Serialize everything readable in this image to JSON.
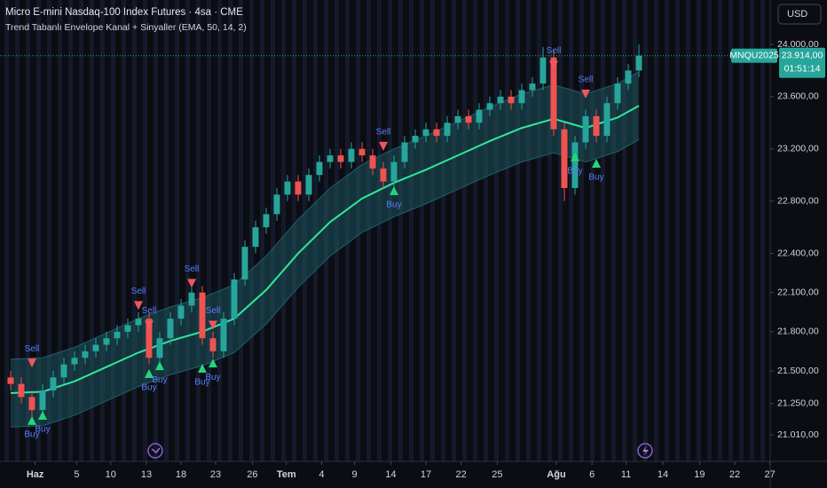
{
  "chart_data": {
    "type": "candlestick",
    "title": "Micro E-mini Nasdaq-100 Index Futures · 4sa · CME",
    "subtitle": "Trend Tabanlı Envelope Kanal + Sinyaller (EMA, 50, 14, 2)",
    "currency": "USD",
    "symbol": "MNQU2025",
    "last_price": {
      "value": 23914,
      "label": "23.914,00"
    },
    "countdown": "01:51:14",
    "grid": false,
    "xlim": [
      0,
      72.5
    ],
    "ylim": [
      20807,
      24340
    ],
    "xticks": [
      {
        "value": 3.3,
        "label": "Haz"
      },
      {
        "value": 7.2,
        "label": "5"
      },
      {
        "value": 10.4,
        "label": "10"
      },
      {
        "value": 13.75,
        "label": "13"
      },
      {
        "value": 17,
        "label": "18"
      },
      {
        "value": 20.25,
        "label": "23"
      },
      {
        "value": 23.7,
        "label": "26"
      },
      {
        "value": 26.9,
        "label": "Tem"
      },
      {
        "value": 30.2,
        "label": "4"
      },
      {
        "value": 33.3,
        "label": "9"
      },
      {
        "value": 36.7,
        "label": "14"
      },
      {
        "value": 40,
        "label": "17"
      },
      {
        "value": 43.3,
        "label": "22"
      },
      {
        "value": 46.7,
        "label": "25"
      },
      {
        "value": 52.25,
        "label": "Ağu"
      },
      {
        "value": 55.6,
        "label": "6"
      },
      {
        "value": 58.8,
        "label": "11"
      },
      {
        "value": 62.25,
        "label": "14"
      },
      {
        "value": 65.7,
        "label": "19"
      },
      {
        "value": 69,
        "label": "22"
      },
      {
        "value": 72.3,
        "label": "27"
      }
    ],
    "yticks": [
      {
        "value": 24000,
        "label": "24.000,00"
      },
      {
        "value": 23600,
        "label": "23.600,00"
      },
      {
        "value": 23200,
        "label": "23.200,00"
      },
      {
        "value": 22800,
        "label": "22.800,00"
      },
      {
        "value": 22400,
        "label": "22.400,00"
      },
      {
        "value": 22100,
        "label": "22.100,00"
      },
      {
        "value": 21800,
        "label": "21.800,00"
      },
      {
        "value": 21500,
        "label": "21.500,00"
      },
      {
        "value": 21250,
        "label": "21.250,00"
      },
      {
        "value": 21010,
        "label": "21.010,00"
      }
    ],
    "up_color": "#26a69a",
    "down_color": "#ef5350",
    "x": [
      1,
      2,
      3,
      4,
      5,
      6,
      7,
      8,
      9,
      10,
      11,
      12,
      13,
      14,
      15,
      16,
      17,
      18,
      19,
      20,
      21,
      22,
      23,
      24,
      25,
      26,
      27,
      28,
      29,
      30,
      31,
      32,
      33,
      34,
      35,
      36,
      37,
      38,
      39,
      40,
      41,
      42,
      43,
      44,
      45,
      46,
      47,
      48,
      49,
      50,
      51,
      52,
      53,
      54,
      55,
      56,
      57,
      58,
      59,
      60
    ],
    "open": [
      21450,
      21400,
      21300,
      21200,
      21350,
      21450,
      21550,
      21600,
      21650,
      21700,
      21750,
      21800,
      21850,
      21900,
      21600,
      21750,
      21900,
      22000,
      22100,
      21750,
      21650,
      21900,
      22200,
      22450,
      22600,
      22700,
      22850,
      22950,
      22850,
      23000,
      23100,
      23150,
      23100,
      23200,
      23150,
      23050,
      22950,
      23100,
      23250,
      23300,
      23350,
      23300,
      23400,
      23450,
      23400,
      23500,
      23550,
      23600,
      23550,
      23650,
      23700,
      23900,
      23350,
      22900,
      23250,
      23450,
      23300,
      23550,
      23700,
      23800
    ],
    "high": [
      21500,
      21450,
      21350,
      21400,
      21500,
      21600,
      21650,
      21700,
      21750,
      21800,
      21850,
      21900,
      21950,
      21950,
      21800,
      21950,
      22050,
      22150,
      22150,
      21800,
      21950,
      22250,
      22500,
      22650,
      22750,
      22900,
      23000,
      23000,
      23050,
      23150,
      23200,
      23200,
      23250,
      23250,
      23200,
      23100,
      23150,
      23300,
      23350,
      23400,
      23400,
      23450,
      23500,
      23500,
      23550,
      23600,
      23650,
      23650,
      23700,
      23750,
      23980,
      23950,
      23400,
      23300,
      23500,
      23500,
      23600,
      23750,
      23850,
      24000
    ],
    "low": [
      21350,
      21250,
      21150,
      21150,
      21300,
      21400,
      21500,
      21550,
      21600,
      21650,
      21700,
      21750,
      21800,
      21550,
      21550,
      21700,
      21850,
      21950,
      21700,
      21600,
      21600,
      21850,
      22150,
      22400,
      22550,
      22650,
      22800,
      22800,
      22800,
      22950,
      23050,
      23050,
      23050,
      23100,
      23000,
      22900,
      22900,
      23050,
      23200,
      23250,
      23250,
      23250,
      23350,
      23350,
      23350,
      23450,
      23500,
      23500,
      23500,
      23600,
      23650,
      23300,
      22800,
      22850,
      23200,
      23250,
      23250,
      23500,
      23650,
      23750
    ],
    "close": [
      21400,
      21300,
      21200,
      21350,
      21450,
      21550,
      21600,
      21650,
      21700,
      21750,
      21800,
      21850,
      21900,
      21600,
      21750,
      21900,
      22000,
      22100,
      21750,
      21650,
      21900,
      22200,
      22450,
      22600,
      22700,
      22850,
      22950,
      22850,
      23000,
      23100,
      23150,
      23100,
      23200,
      23150,
      23050,
      22950,
      23100,
      23250,
      23300,
      23350,
      23300,
      23400,
      23450,
      23400,
      23500,
      23550,
      23600,
      23550,
      23650,
      23700,
      23900,
      23350,
      22900,
      23250,
      23450,
      23300,
      23550,
      23700,
      23800,
      23914
    ],
    "band_x": [
      1,
      4,
      7,
      10,
      13,
      16,
      19,
      22,
      25,
      28,
      31,
      34,
      37,
      40,
      43,
      46,
      49,
      52,
      55,
      58,
      60
    ],
    "ema": {
      "color": "#2ee89a",
      "values": [
        21330,
        21340,
        21420,
        21530,
        21640,
        21730,
        21800,
        21900,
        22120,
        22400,
        22640,
        22820,
        22940,
        23040,
        23150,
        23260,
        23360,
        23430,
        23360,
        23440,
        23530
      ]
    },
    "upper": {
      "color": "#1f5f6a",
      "values": [
        21590,
        21600,
        21680,
        21790,
        21900,
        21990,
        22060,
        22160,
        22380,
        22660,
        22900,
        23080,
        23200,
        23300,
        23410,
        23520,
        23620,
        23690,
        23620,
        23700,
        23790
      ]
    },
    "lower": {
      "color": "#1f5f6a",
      "values": [
        21070,
        21080,
        21160,
        21270,
        21380,
        21470,
        21540,
        21640,
        21860,
        22140,
        22380,
        22560,
        22680,
        22780,
        22890,
        23000,
        23100,
        23170,
        23100,
        23180,
        23270
      ]
    },
    "sell_color": "#f25560",
    "buy_color": "#22d67c",
    "signals": [
      {
        "label": "Sell",
        "x": 3,
        "y": 21560
      },
      {
        "label": "Sell",
        "x": 13,
        "y": 22000
      },
      {
        "label": "Sell",
        "x": 14,
        "y": 21850
      },
      {
        "label": "Sell",
        "x": 18,
        "y": 22170
      },
      {
        "label": "Sell",
        "x": 20,
        "y": 21850
      },
      {
        "label": "Sell",
        "x": 36,
        "y": 23220
      },
      {
        "label": "Sell",
        "x": 52,
        "y": 23840
      },
      {
        "label": "Sell",
        "x": 55,
        "y": 23620
      },
      {
        "label": "Buy",
        "x": 3,
        "y": 21120
      },
      {
        "label": "Buy",
        "x": 4,
        "y": 21160
      },
      {
        "label": "Buy",
        "x": 14,
        "y": 21480
      },
      {
        "label": "Buy",
        "x": 15,
        "y": 21540
      },
      {
        "label": "Buy",
        "x": 19,
        "y": 21520
      },
      {
        "label": "Buy",
        "x": 20,
        "y": 21560
      },
      {
        "label": "Buy",
        "x": 37,
        "y": 22880
      },
      {
        "label": "Buy",
        "x": 54,
        "y": 23140
      },
      {
        "label": "Buy",
        "x": 56,
        "y": 23090
      }
    ]
  }
}
